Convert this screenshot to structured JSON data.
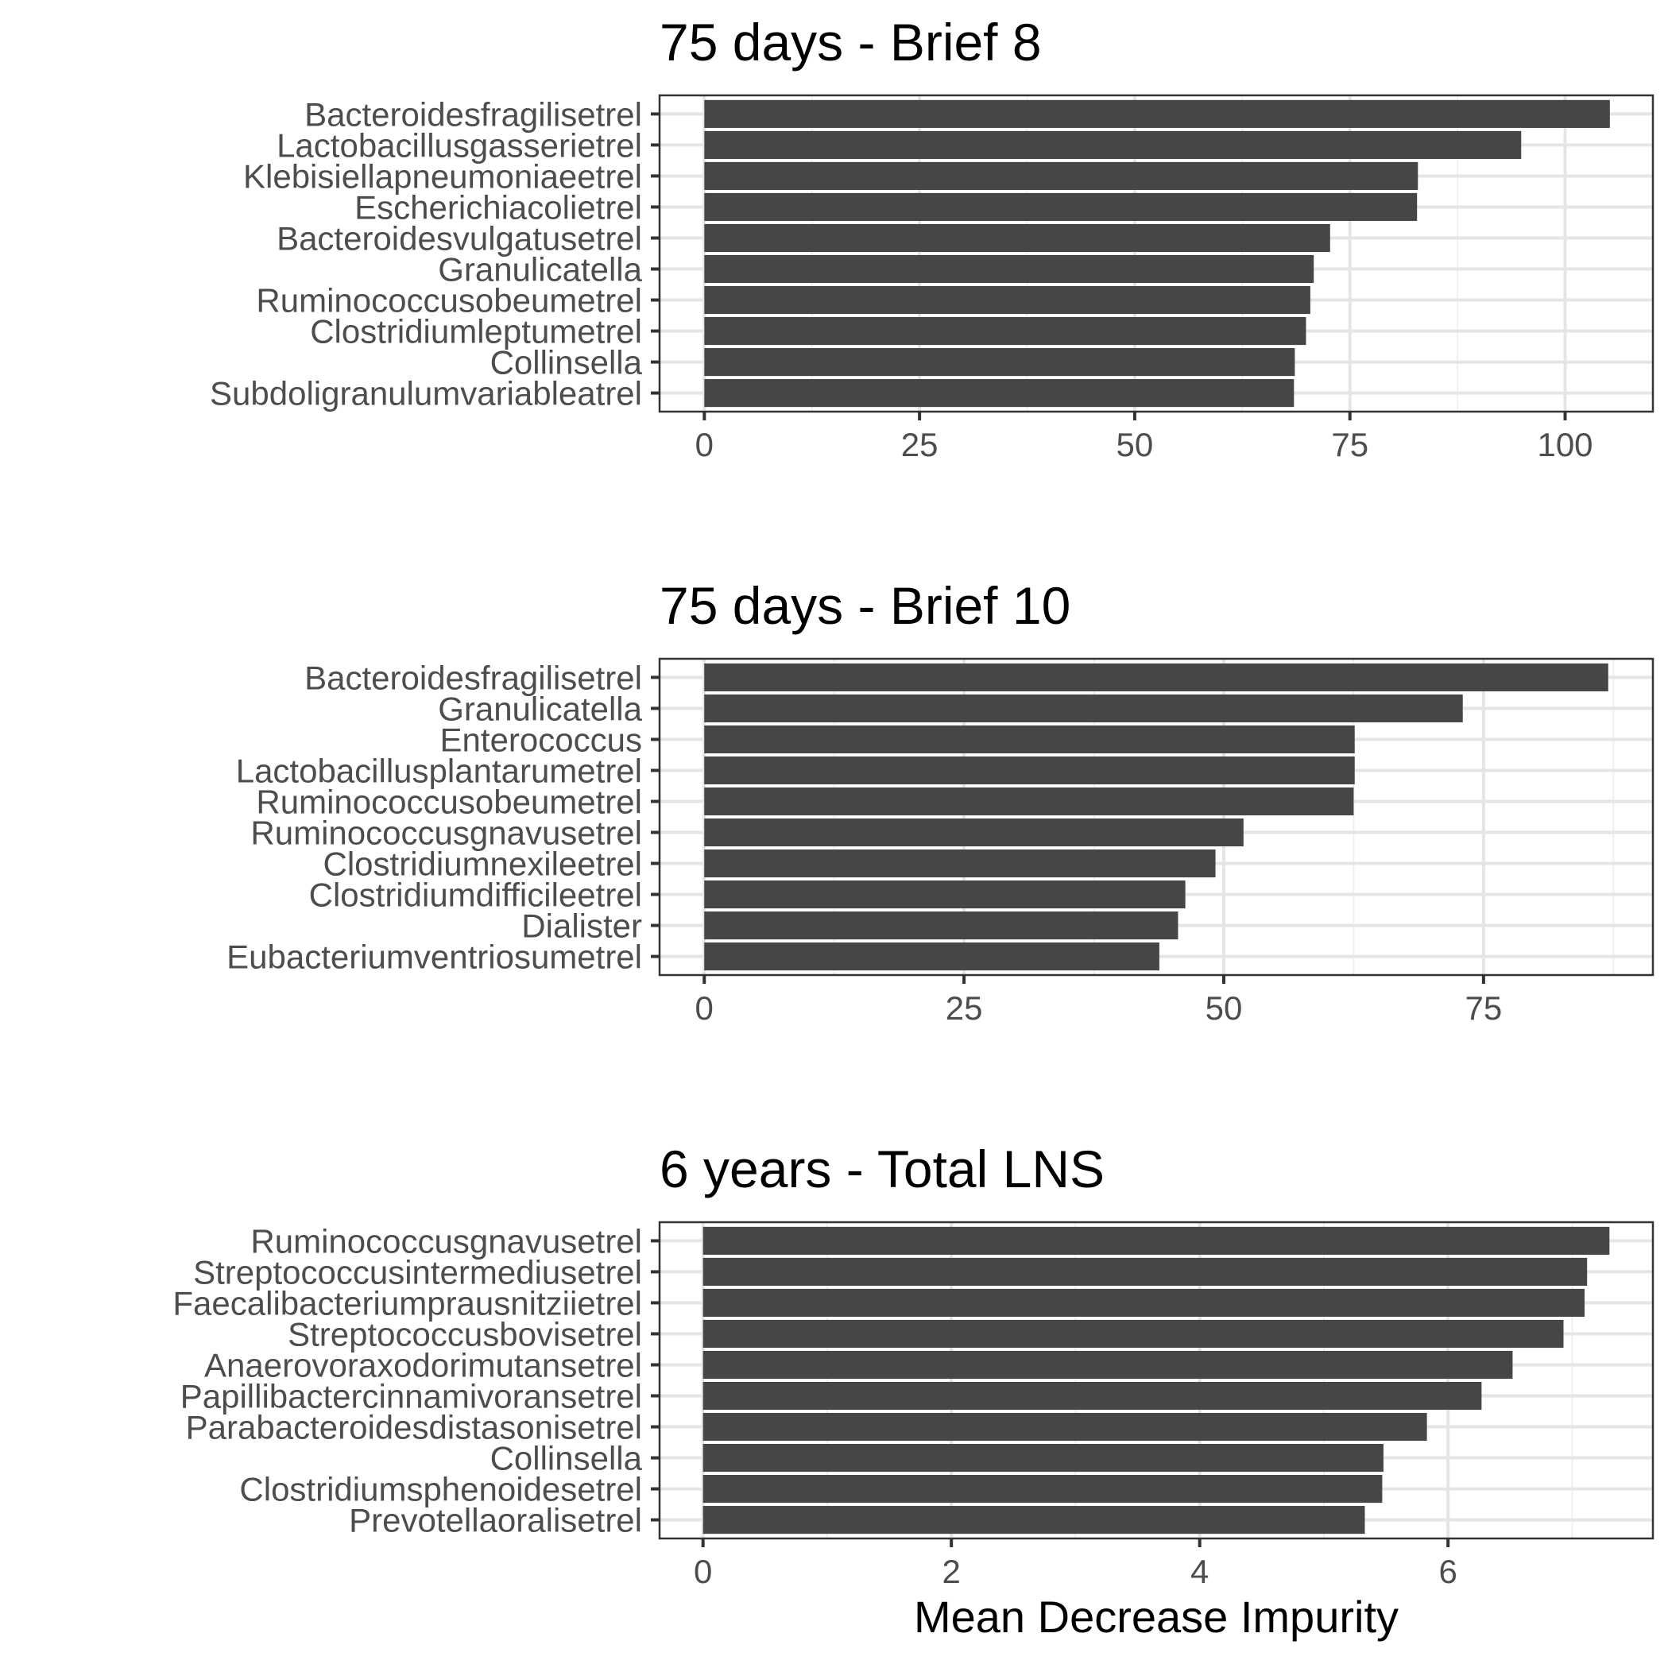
{
  "xlabel": "Mean Decrease Impurity",
  "colors": {
    "bar": "#464646",
    "panel_border": "#333333",
    "grid_major": "#e5e5e5",
    "grid_minor": "#f0f0f0",
    "label_text": "#4d4d4d"
  },
  "chart_data": [
    {
      "type": "bar",
      "orientation": "horizontal",
      "title": "75 days - Brief 8",
      "xlabel": "",
      "xlim": [
        -5.2,
        110.2
      ],
      "ticks": [
        0,
        25,
        50,
        75,
        100
      ],
      "tick_labels": [
        "0",
        "25",
        "50",
        "75",
        "100"
      ],
      "categories": [
        "Bacteroidesfragilisetrel",
        "Lactobacillusgasserietrel",
        "Klebisiellapneumoniaeetrel",
        "Escherichiacolietrel",
        "Bacteroidesvulgatusetrel",
        "Granulicatella",
        "Ruminococcusobeumetrel",
        "Clostridiumleptumetrel",
        "Collinsella",
        "Subdoligranulumvariableatrel"
      ],
      "values": [
        105.2,
        94.9,
        82.9,
        82.8,
        72.7,
        70.8,
        70.4,
        69.9,
        68.6,
        68.5
      ],
      "grid": true
    },
    {
      "type": "bar",
      "orientation": "horizontal",
      "title": "75 days - Brief 10",
      "xlabel": "",
      "xlim": [
        -4.3,
        91.3
      ],
      "ticks": [
        0,
        25,
        50,
        75
      ],
      "tick_labels": [
        "0",
        "25",
        "50",
        "75"
      ],
      "categories": [
        "Bacteroidesfragilisetrel",
        "Granulicatella",
        "Enterococcus",
        "Lactobacillusplantarumetrel",
        "Ruminococcusobeumetrel",
        "Ruminococcusgnavusetrel",
        "Clostridiumnexileetrel",
        "Clostridiumdifficileetrel",
        "Dialister",
        "Eubacteriumventriosumetrel"
      ],
      "values": [
        87.0,
        73.0,
        62.6,
        62.6,
        62.5,
        51.9,
        49.2,
        46.3,
        45.6,
        43.8
      ],
      "grid": true
    },
    {
      "type": "bar",
      "orientation": "horizontal",
      "title": "6 years - Total LNS",
      "xlabel": "Mean Decrease Impurity",
      "xlim": [
        -0.35,
        7.65
      ],
      "ticks": [
        0,
        2,
        4,
        6
      ],
      "tick_labels": [
        "0",
        "2",
        "4",
        "6"
      ],
      "categories": [
        "Ruminococcusgnavusetrel",
        "Streptococcusintermediusetrel",
        "Faecalibacteriumprausnitziietrel",
        "Streptococcusbovisetrel",
        "Anaerovoraxodorimutansetrel",
        "Papillibactercinnamivoransetrel",
        "Parabacteroidesdistasonisetrel",
        "Collinsella",
        "Clostridiumsphenoidesetrel",
        "Prevotellaoralisetrel"
      ],
      "values": [
        7.3,
        7.12,
        7.1,
        6.93,
        6.52,
        6.27,
        5.83,
        5.48,
        5.47,
        5.33
      ],
      "grid": true
    }
  ]
}
